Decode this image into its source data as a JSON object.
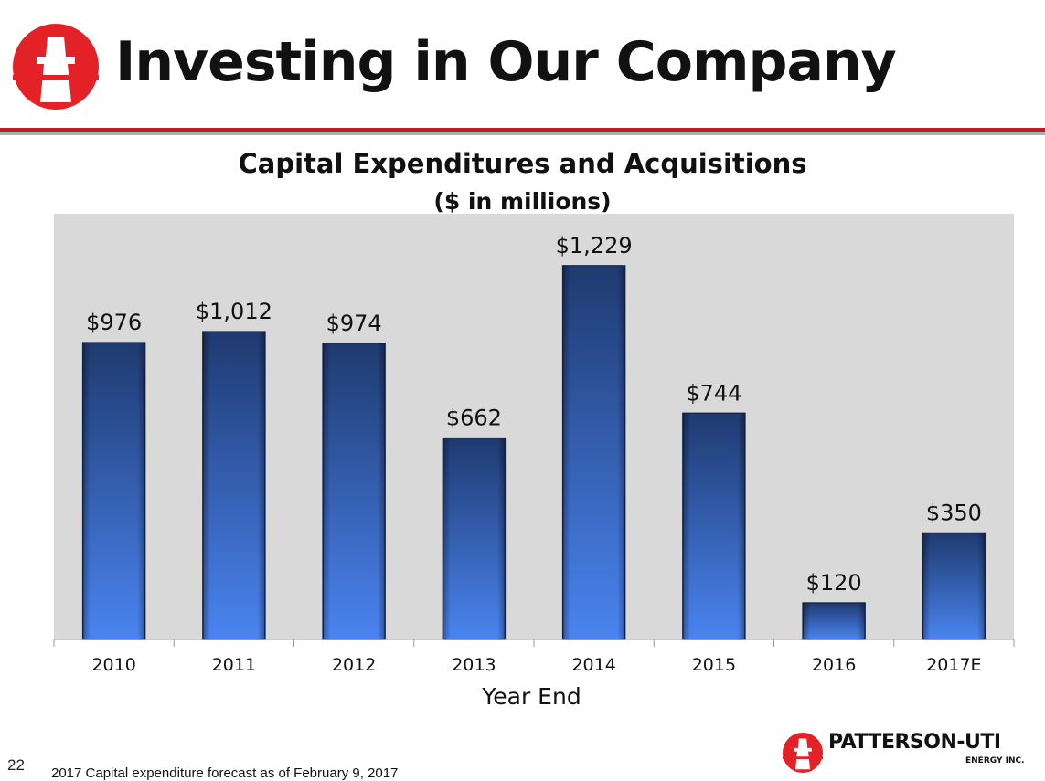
{
  "header": {
    "title": "Investing in Our Company",
    "logo_icon": "derrick-logo-icon"
  },
  "colors": {
    "brand_red": "#e32227",
    "bar_dark": "#1f3a70",
    "bar_light": "#4a84f0",
    "plot_background": "#d9d9d9"
  },
  "chart_data": {
    "type": "bar",
    "title": "Capital Expenditures and Acquisitions",
    "subtitle": "($ in millions)",
    "xlabel": "Year End",
    "ylabel": "",
    "categories": [
      "2010",
      "2011",
      "2012",
      "2013",
      "2014",
      "2015",
      "2016",
      "2017E"
    ],
    "values": [
      976,
      1012,
      974,
      662,
      1229,
      744,
      120,
      350
    ],
    "data_labels": [
      "$976",
      "$1,012",
      "$974",
      "$662",
      "$1,229",
      "$744",
      "$120",
      "$350"
    ],
    "ylim": [
      0,
      1400
    ],
    "grid": false,
    "legend": "none"
  },
  "footer": {
    "page_number": "22",
    "footnote": "2017 Capital expenditure forecast as of February 9, 2017",
    "brand_name": "PATTERSON-UTI",
    "brand_sub": "ENERGY INC.",
    "brand_icon": "derrick-logo-icon"
  }
}
